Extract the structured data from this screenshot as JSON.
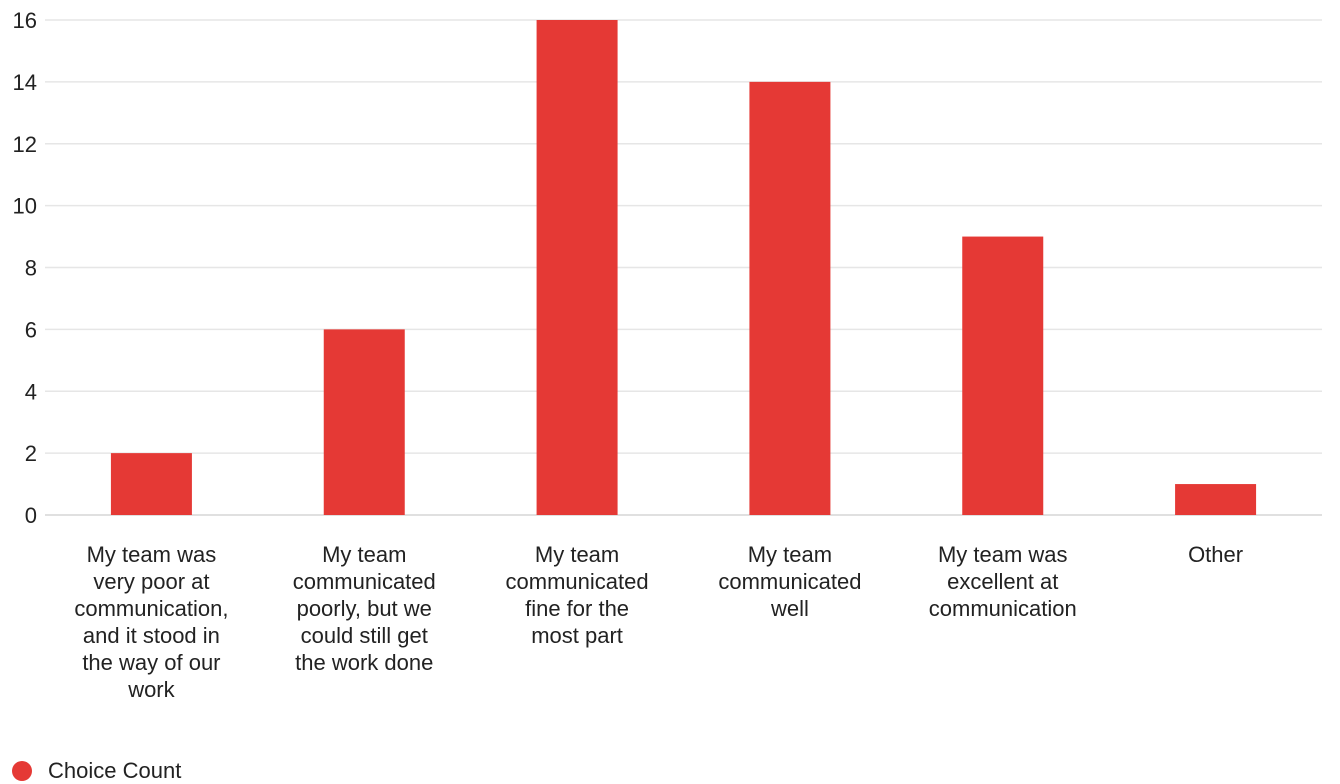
{
  "chart_data": {
    "type": "bar",
    "categories": [
      [
        "My team was",
        "very poor at",
        "communication,",
        "and it stood in",
        "the way of our",
        "work"
      ],
      [
        "My team",
        "communicated",
        "poorly, but we",
        "could still get",
        "the work done"
      ],
      [
        "My team",
        "communicated",
        "fine for the",
        "most part"
      ],
      [
        "My team",
        "communicated",
        "well"
      ],
      [
        "My team was",
        "excellent at",
        "communication"
      ],
      [
        "Other"
      ]
    ],
    "series": [
      {
        "name": "Choice Count",
        "color": "#e53935",
        "values": [
          2,
          6,
          16,
          14,
          9,
          1
        ]
      }
    ],
    "ylim": [
      0,
      16
    ],
    "yticks": [
      0,
      2,
      4,
      6,
      8,
      10,
      12,
      14,
      16
    ],
    "grid": true,
    "legend": "bottom-left"
  }
}
